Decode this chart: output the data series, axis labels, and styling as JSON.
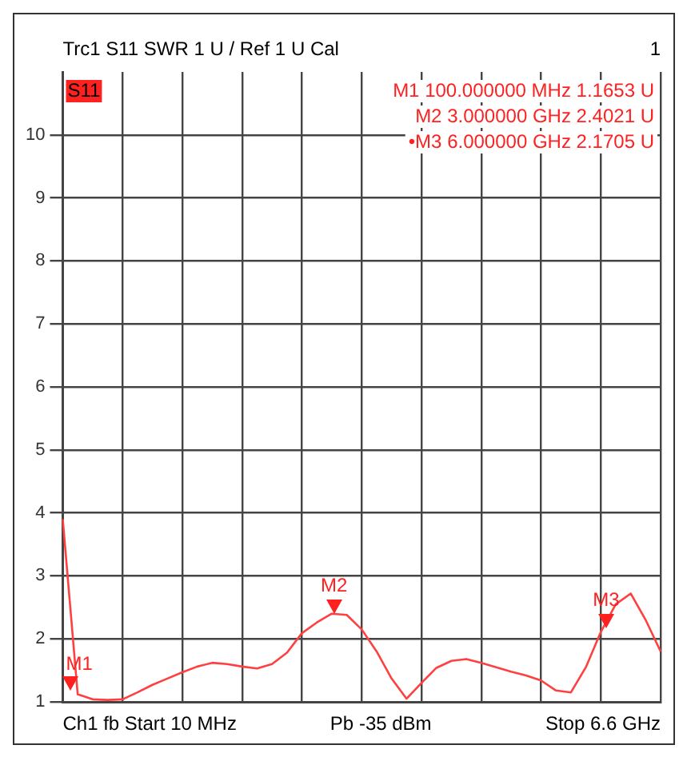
{
  "chart_data": {
    "type": "line",
    "title": "Trc1 S11 SWR 1 U / Ref 1 U Cal",
    "subtitle": "1",
    "categories": [
      null,
      null,
      null,
      null,
      null,
      null,
      null,
      null,
      null,
      null,
      null,
      null,
      null,
      null,
      null,
      null,
      null,
      null,
      null,
      null,
      null,
      null,
      null,
      null,
      null,
      null,
      null,
      null,
      null,
      null,
      null,
      null,
      null,
      null,
      null,
      null,
      null,
      null,
      null,
      null,
      null
    ],
    "series": [
      {
        "color": "#ff4040",
        "values": [
          3.9,
          1.12,
          1.04,
          1.03,
          1.04,
          1.15,
          1.27,
          1.37,
          1.47,
          1.56,
          1.62,
          1.6,
          1.56,
          1.53,
          1.6,
          1.78,
          2.09,
          2.26,
          2.4,
          2.38,
          2.15,
          1.8,
          1.37,
          1.05,
          1.3,
          1.54,
          1.65,
          1.68,
          1.62,
          1.55,
          1.48,
          1.42,
          1.34,
          1.18,
          1.15,
          1.55,
          2.11,
          2.55,
          2.72,
          2.3,
          1.8
        ]
      }
    ],
    "ylim": [
      1,
      11
    ],
    "yticks": [
      1,
      2,
      3,
      4,
      5,
      6,
      7,
      8,
      9,
      10
    ],
    "tick_labels": "y",
    "grid": true,
    "marker": "none",
    "line_style": "solid",
    "annotations": [
      "S11",
      "M1 100.000000 MHz 1.1653 U",
      "M2 3.000000 GHz 2.4021 U",
      "•M3 6.000000 GHz 2.1705 U",
      "Ch1 fb Start 10 MHz",
      "Pb -35 dBm",
      "Stop 6.6 GHz",
      {
        "text": "M1",
        "y": 1.1653
      },
      {
        "text": "M2",
        "y": 2.4021
      },
      {
        "text": "M3",
        "y": 2.1705
      }
    ]
  }
}
